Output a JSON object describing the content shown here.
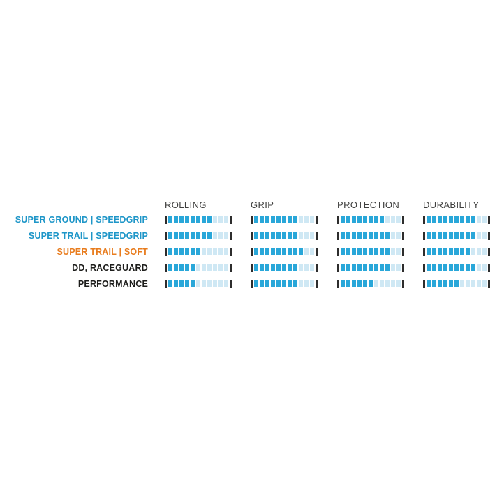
{
  "chart_data": {
    "type": "bar",
    "title": "",
    "description": "Tire construction / compound comparison chart with segmented rating bars",
    "scale": {
      "min": 0,
      "max": 11,
      "unit": "segments"
    },
    "categories": [
      "SUPER GROUND | SPEEDGRIP",
      "SUPER TRAIL | SPEEDGRIP",
      "SUPER TRAIL | SOFT",
      "DD, RACEGUARD",
      "PERFORMANCE"
    ],
    "series": [
      {
        "name": "ROLLING",
        "values": [
          8,
          8,
          6,
          5,
          5
        ]
      },
      {
        "name": "GRIP",
        "values": [
          8,
          8,
          9,
          8,
          8
        ]
      },
      {
        "name": "PROTECTION",
        "values": [
          8,
          9,
          9,
          9,
          6
        ]
      },
      {
        "name": "DURABILITY",
        "values": [
          9,
          9,
          8,
          9,
          6
        ]
      }
    ],
    "legend_position": "none",
    "grid": false
  },
  "headers": [
    "ROLLING",
    "GRIP",
    "PROTECTION",
    "DURABILITY"
  ],
  "rows": [
    {
      "label": "SUPER GROUND | SPEEDGRIP",
      "label_color": "#1e96c8",
      "ratings": [
        8,
        8,
        8,
        9
      ]
    },
    {
      "label": "SUPER TRAIL | SPEEDGRIP",
      "label_color": "#1e96c8",
      "ratings": [
        8,
        8,
        9,
        9
      ]
    },
    {
      "label": "SUPER TRAIL | SOFT",
      "label_color": "#e87c1e",
      "ratings": [
        6,
        9,
        9,
        8
      ]
    },
    {
      "label": "DD, RACEGUARD",
      "label_color": "#1d1d1b",
      "ratings": [
        5,
        8,
        9,
        9
      ]
    },
    {
      "label": "PERFORMANCE",
      "label_color": "#1d1d1b",
      "ratings": [
        5,
        8,
        6,
        6
      ]
    }
  ],
  "bar": {
    "segments_total": 11,
    "filled_color": "#29a7d9",
    "empty_color": "#cfe8f4",
    "marker_color": "#2d2d2d"
  },
  "header_color": "#3f3f3e"
}
